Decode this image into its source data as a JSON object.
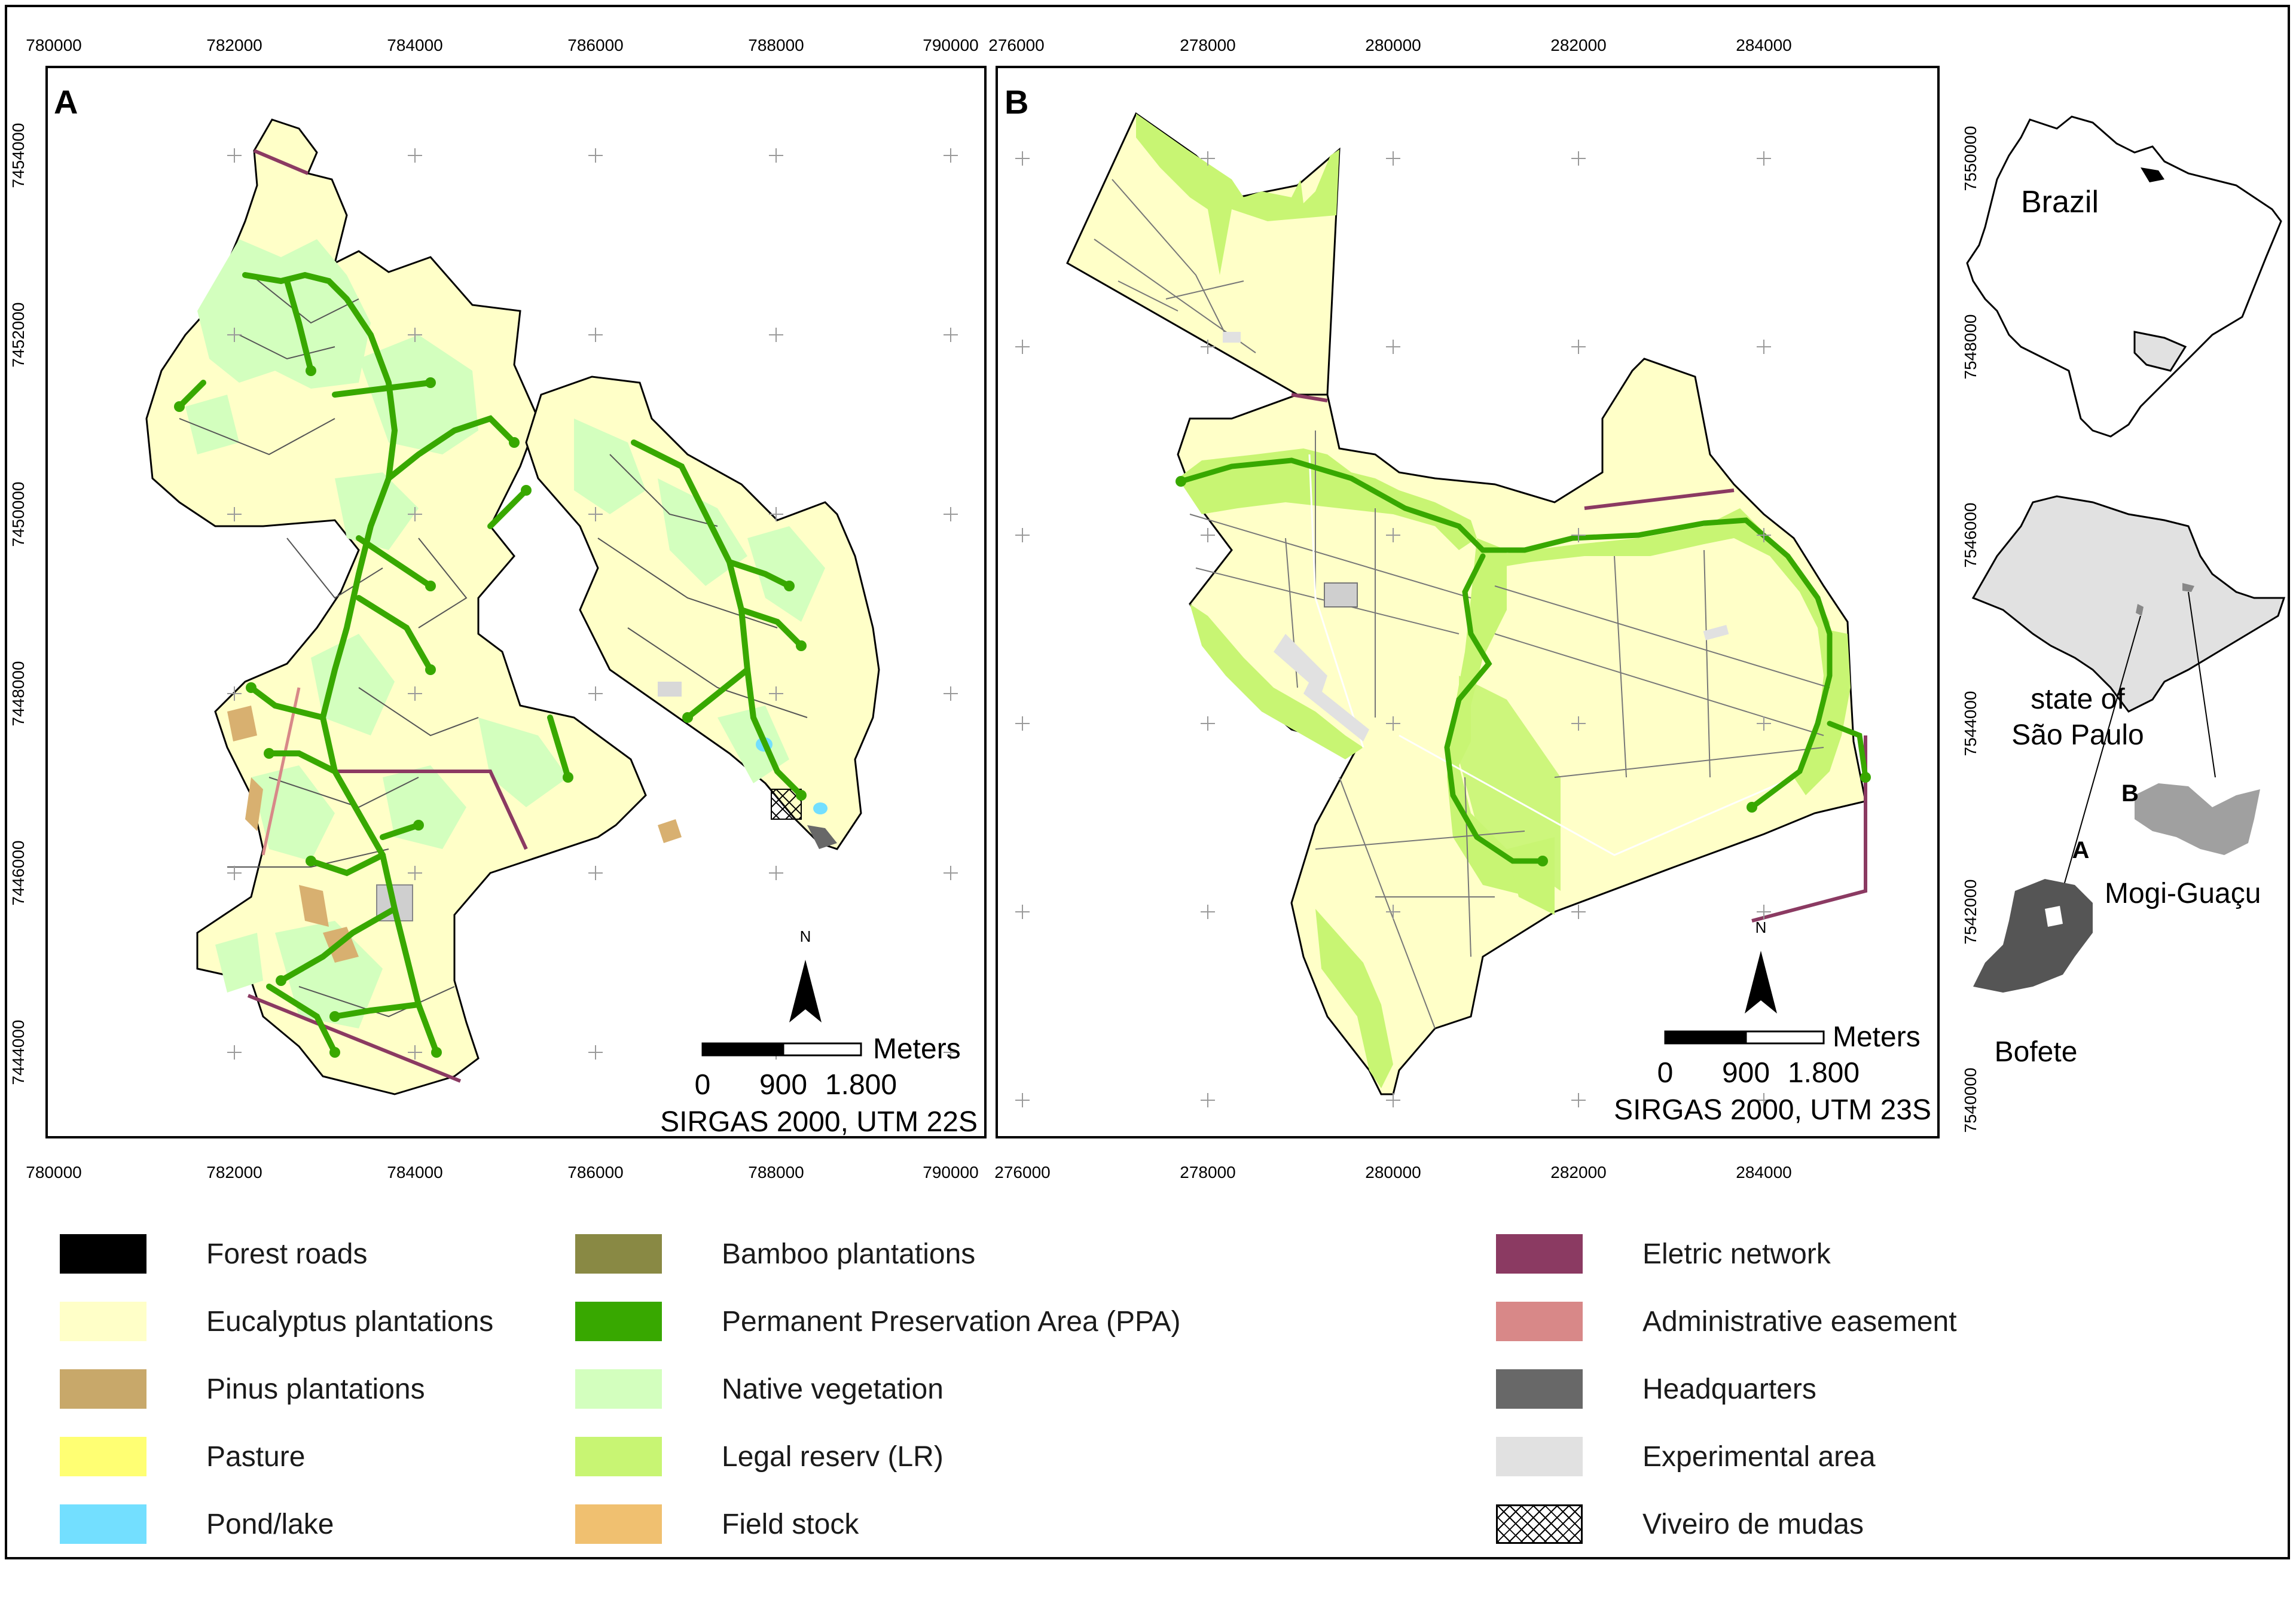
{
  "panel_a": {
    "label": "A",
    "x_ticks": [
      "780000",
      "782000",
      "784000",
      "786000",
      "788000",
      "790000"
    ],
    "y_ticks": [
      "7454000",
      "7452000",
      "7450000",
      "7448000",
      "7446000",
      "7444000"
    ],
    "scale_units": "Meters",
    "scale_values": [
      "0",
      "900",
      "1.800"
    ],
    "crs": "SIRGAS 2000, UTM 22S",
    "north": "N"
  },
  "panel_b": {
    "label": "B",
    "x_ticks": [
      "276000",
      "278000",
      "280000",
      "282000",
      "284000"
    ],
    "y_ticks": [
      "7550000",
      "7548000",
      "7546000",
      "7544000",
      "7542000",
      "7540000"
    ],
    "scale_units": "Meters",
    "scale_values": [
      "0",
      "900",
      "1.800"
    ],
    "crs": "SIRGAS 2000, UTM 23S",
    "north": "N"
  },
  "inset": {
    "country": "Brazil",
    "state_line1": "state of",
    "state_line2": "São Paulo",
    "label_a": "A",
    "label_b": "B",
    "city_b": "Mogi-Guaçu",
    "city_a": "Bofete"
  },
  "legend": [
    {
      "label": "Forest roads",
      "color": "#000000"
    },
    {
      "label": "Eucalyptus plantations",
      "color": "#ffffc8"
    },
    {
      "label": "Pinus plantations",
      "color": "#c8a86a"
    },
    {
      "label": "Pasture",
      "color": "#ffff73"
    },
    {
      "label": "Pond/lake",
      "color": "#73dfff"
    },
    {
      "label": "Bamboo plantations",
      "color": "#898944"
    },
    {
      "label": "Permanent Preservation Area (PPA)",
      "color": "#38a800"
    },
    {
      "label": "Native vegetation",
      "color": "#d3ffbe"
    },
    {
      "label": "Legal reserv (LR)",
      "color": "#c8f573"
    },
    {
      "label": "Field stock",
      "color": "#f0c070"
    },
    {
      "label": "Eletric network",
      "color": "#8b3a62"
    },
    {
      "label": "Administrative easement",
      "color": "#d88888"
    },
    {
      "label": "Headquarters",
      "color": "#686868"
    },
    {
      "label": "Experimental area",
      "color": "#e1e1e1"
    },
    {
      "label": "Viveiro de mudas",
      "color": "hatch"
    }
  ]
}
